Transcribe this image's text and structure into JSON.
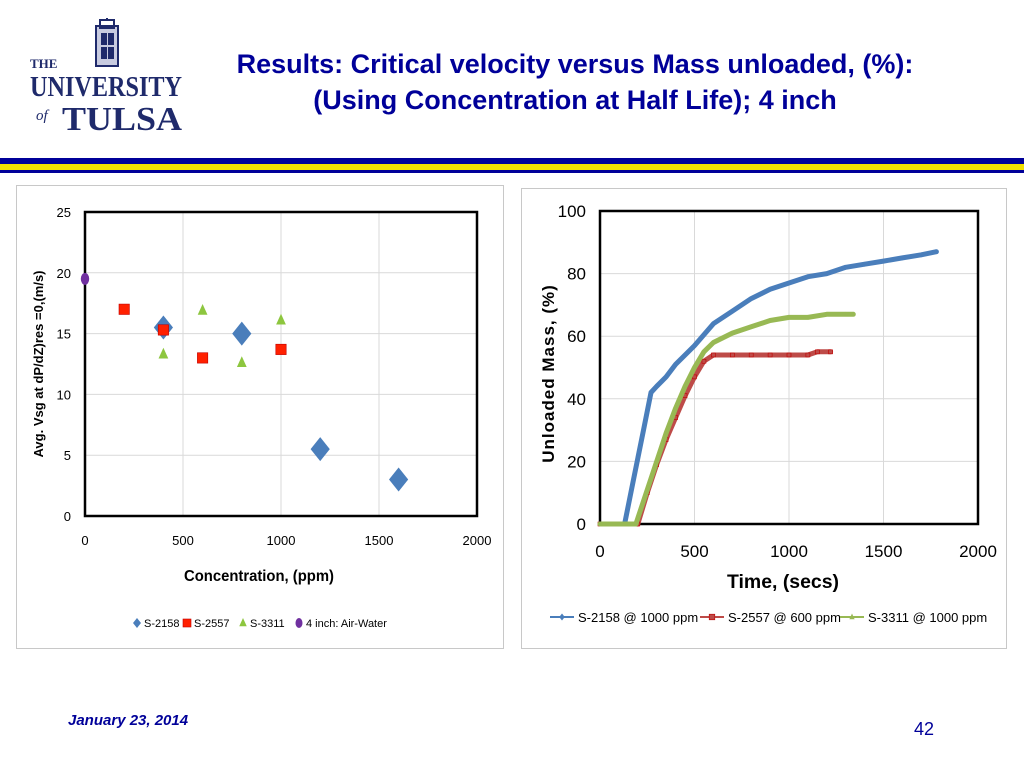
{
  "logo": {
    "the": "THE",
    "university": "UNIVERSITY",
    "of": "of",
    "tulsa": "TULSA"
  },
  "title": {
    "line1": "Results: Critical velocity versus Mass unloaded, (%):",
    "line2": "(Using Concentration at Half Life); 4 inch"
  },
  "footer": {
    "date": "January 23, 2014",
    "page": "42"
  },
  "colors": {
    "title": "#000099",
    "rule_blue": "#000099",
    "rule_yellow": "#f2e000",
    "s2158": "#4a7ebb",
    "s2557": "#ff2000",
    "s3311": "#8dc63f",
    "air_water": "#7030a0",
    "line_s2158": "#4a7ebb",
    "line_s2557": "#be4b48",
    "line_s3311": "#98b954"
  },
  "chart_data": [
    {
      "type": "scatter",
      "xlabel": "Concentration, (ppm)",
      "ylabel": "Avg. Vsg at dP/dZ)res =0,(m/s)",
      "xlim": [
        0,
        2000
      ],
      "ylim": [
        0,
        25
      ],
      "xticks": [
        "0",
        "500",
        "1000",
        "1500",
        "2000"
      ],
      "yticks": [
        "0",
        "5",
        "10",
        "15",
        "20",
        "25"
      ],
      "grid": true,
      "legend_position": "bottom",
      "series": [
        {
          "name": "S-2158",
          "marker": "diamond",
          "points": [
            [
              400,
              15.5
            ],
            [
              800,
              15.0
            ],
            [
              1200,
              5.5
            ],
            [
              1600,
              3.0
            ]
          ]
        },
        {
          "name": "S-2557",
          "marker": "square",
          "points": [
            [
              200,
              17.0
            ],
            [
              400,
              15.3
            ],
            [
              600,
              13.0
            ],
            [
              1000,
              13.7
            ]
          ]
        },
        {
          "name": "S-3311",
          "marker": "triangle",
          "points": [
            [
              400,
              13.3
            ],
            [
              600,
              16.9
            ],
            [
              800,
              12.6
            ],
            [
              1000,
              16.1
            ]
          ]
        },
        {
          "name": "4 inch: Air-Water",
          "marker": "circle",
          "points": [
            [
              0,
              19.5
            ]
          ]
        }
      ]
    },
    {
      "type": "line",
      "xlabel": "Time, (secs)",
      "ylabel": "Unloaded Mass, (%)",
      "xlim": [
        0,
        2000
      ],
      "ylim": [
        0,
        100
      ],
      "xticks": [
        "0",
        "500",
        "1000",
        "1500",
        "2000"
      ],
      "yticks": [
        "0",
        "20",
        "40",
        "60",
        "80",
        "100"
      ],
      "grid": true,
      "legend_position": "bottom",
      "series": [
        {
          "name": "S-2158 @ 1000 ppm",
          "marker": "diamond",
          "points": [
            [
              0,
              0
            ],
            [
              130,
              0
            ],
            [
              180,
              15
            ],
            [
              230,
              30
            ],
            [
              270,
              42
            ],
            [
              300,
              44
            ],
            [
              350,
              47
            ],
            [
              400,
              51
            ],
            [
              500,
              57
            ],
            [
              600,
              64
            ],
            [
              700,
              68
            ],
            [
              800,
              72
            ],
            [
              900,
              75
            ],
            [
              1000,
              77
            ],
            [
              1100,
              79
            ],
            [
              1200,
              80
            ],
            [
              1300,
              82
            ],
            [
              1400,
              83
            ],
            [
              1500,
              84
            ],
            [
              1600,
              85
            ],
            [
              1700,
              86
            ],
            [
              1780,
              87
            ]
          ]
        },
        {
          "name": "S-2557 @ 600 ppm",
          "marker": "square",
          "points": [
            [
              0,
              0
            ],
            [
              200,
              0
            ],
            [
              250,
              10
            ],
            [
              300,
              19
            ],
            [
              350,
              27
            ],
            [
              400,
              34
            ],
            [
              450,
              41
            ],
            [
              500,
              47
            ],
            [
              550,
              52
            ],
            [
              600,
              54
            ],
            [
              700,
              54
            ],
            [
              800,
              54
            ],
            [
              900,
              54
            ],
            [
              1000,
              54
            ],
            [
              1100,
              54
            ],
            [
              1150,
              55
            ],
            [
              1220,
              55
            ]
          ]
        },
        {
          "name": "S-3311 @ 1000 ppm",
          "marker": "triangle",
          "points": [
            [
              0,
              0
            ],
            [
              190,
              0
            ],
            [
              250,
              11
            ],
            [
              300,
              20
            ],
            [
              350,
              29
            ],
            [
              400,
              37
            ],
            [
              450,
              44
            ],
            [
              500,
              50
            ],
            [
              550,
              55
            ],
            [
              600,
              58
            ],
            [
              700,
              61
            ],
            [
              800,
              63
            ],
            [
              900,
              65
            ],
            [
              1000,
              66
            ],
            [
              1100,
              66
            ],
            [
              1200,
              67
            ],
            [
              1300,
              67
            ],
            [
              1340,
              67
            ]
          ]
        }
      ]
    }
  ]
}
